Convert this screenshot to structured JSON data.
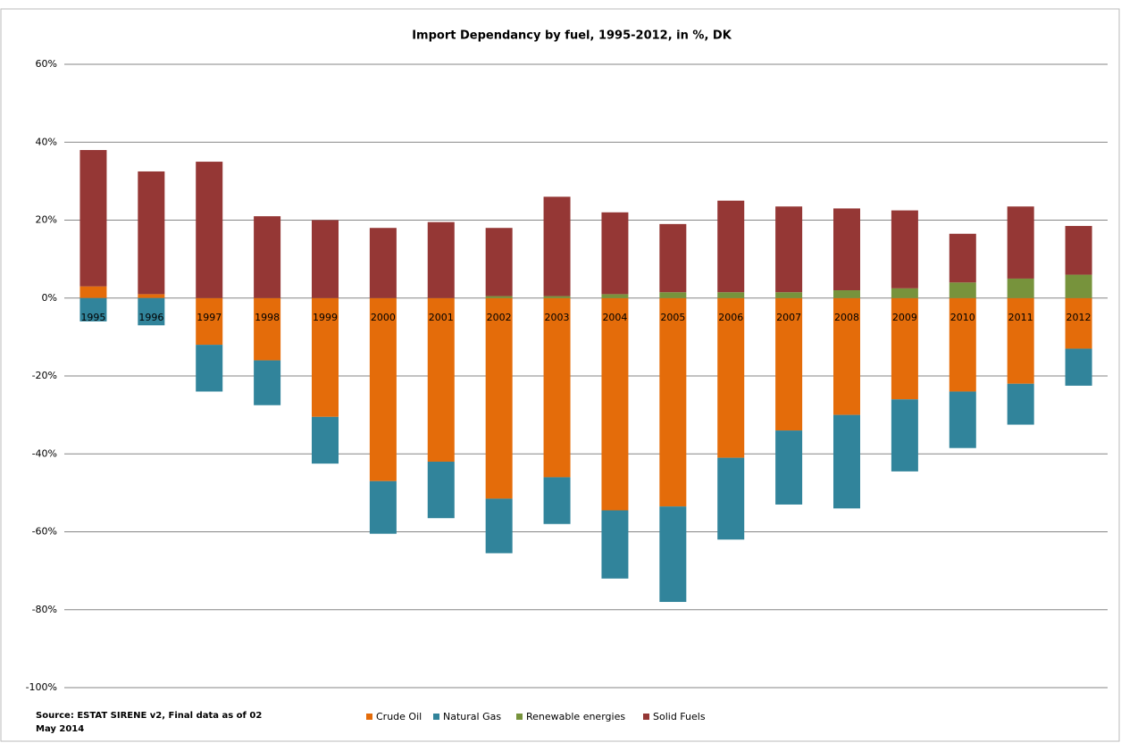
{
  "chart_data": {
    "type": "stacked_bar",
    "title": "Import Dependancy by fuel, 1995-2012, in %, DK",
    "source": "Source: ESTAT SIRENE v2, Final data as of 02 May 2014",
    "categories": [
      "1995",
      "1996",
      "1997",
      "1998",
      "1999",
      "2000",
      "2001",
      "2002",
      "2003",
      "2004",
      "2005",
      "2006",
      "2007",
      "2008",
      "2009",
      "2010",
      "2011",
      "2012"
    ],
    "series": [
      {
        "name": "Crude Oil",
        "color": "#e46c0a",
        "values": [
          3,
          1,
          -12,
          -16,
          -30.5,
          -47,
          -42,
          -51.5,
          -46,
          -54.5,
          -53.5,
          -41,
          -34,
          -30,
          -26,
          -24,
          -22,
          -13
        ]
      },
      {
        "name": "Natural Gas",
        "color": "#31849b",
        "values": [
          -6,
          -7,
          -12,
          -11.5,
          -12,
          -13.5,
          -14.5,
          -14,
          -12,
          -17.5,
          -24.5,
          -21,
          -19,
          -24,
          -18.5,
          -14.5,
          -10.5,
          -9.5
        ]
      },
      {
        "name": "Renewable energies",
        "color": "#77933c",
        "values": [
          0,
          0,
          0,
          0,
          0,
          0,
          0,
          0.5,
          0.5,
          1,
          1.5,
          1.5,
          1.5,
          2,
          2.5,
          4,
          5,
          6
        ]
      },
      {
        "name": "Solid Fuels",
        "color": "#953735",
        "values": [
          35,
          31.5,
          35,
          21,
          20,
          18,
          19.5,
          17.5,
          25.5,
          21,
          17.5,
          23.5,
          22,
          21,
          20,
          12.5,
          18.5,
          12.5
        ]
      }
    ],
    "ylim": [
      -100,
      60
    ],
    "yticks": [
      {
        "value": -100,
        "label": "-100%"
      },
      {
        "value": -80,
        "label": "-80%"
      },
      {
        "value": -60,
        "label": "-60%"
      },
      {
        "value": -40,
        "label": "-40%"
      },
      {
        "value": -20,
        "label": "-20%"
      },
      {
        "value": 0,
        "label": "0%"
      },
      {
        "value": 20,
        "label": "20%"
      },
      {
        "value": 40,
        "label": "40%"
      },
      {
        "value": 60,
        "label": "60%"
      }
    ],
    "grid": true,
    "legend": "bottom"
  }
}
